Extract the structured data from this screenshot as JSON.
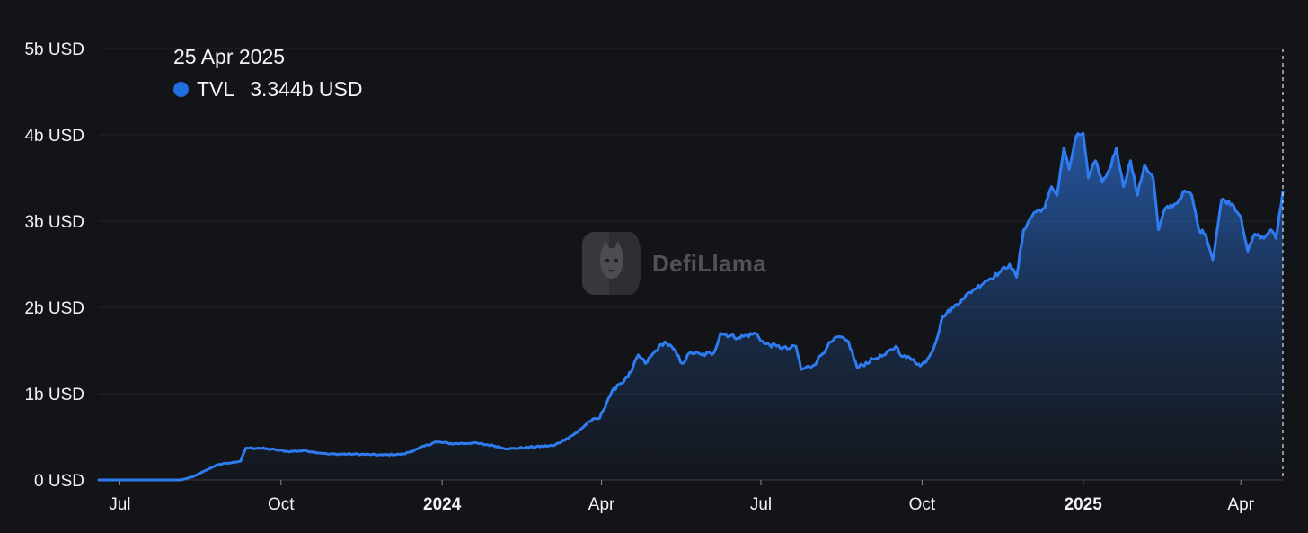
{
  "tooltip": {
    "date": "25 Apr 2025",
    "series_name": "TVL",
    "value_text": "3.344b USD"
  },
  "watermark": {
    "text": "DefiLlama"
  },
  "colors": {
    "background": "#131417",
    "line": "#2f7cf0",
    "legend_dot": "#1f6fe0",
    "grid": "#22252b",
    "tick_text": "#f2f3f5"
  },
  "chart_data": {
    "type": "area",
    "title": "",
    "xlabel": "",
    "ylabel": "",
    "ylim": [
      0,
      5
    ],
    "y_unit": "b USD",
    "y_ticks": [
      {
        "value": 0,
        "label": "0 USD"
      },
      {
        "value": 1,
        "label": "1b USD"
      },
      {
        "value": 2,
        "label": "2b USD"
      },
      {
        "value": 3,
        "label": "3b USD"
      },
      {
        "value": 4,
        "label": "4b USD"
      },
      {
        "value": 5,
        "label": "5b USD"
      }
    ],
    "x_range": [
      "2023-06-19",
      "2025-04-25"
    ],
    "x_ticks": [
      {
        "date": "2023-07-01",
        "label": "Jul",
        "bold": false
      },
      {
        "date": "2023-10-01",
        "label": "Oct",
        "bold": false
      },
      {
        "date": "2024-01-01",
        "label": "2024",
        "bold": true
      },
      {
        "date": "2024-04-01",
        "label": "Apr",
        "bold": false
      },
      {
        "date": "2024-07-01",
        "label": "Jul",
        "bold": false
      },
      {
        "date": "2024-10-01",
        "label": "Oct",
        "bold": false
      },
      {
        "date": "2025-01-01",
        "label": "2025",
        "bold": true
      },
      {
        "date": "2025-04-01",
        "label": "Apr",
        "bold": false
      }
    ],
    "grid": true,
    "legend": "top-left",
    "crosshair_date": "2025-04-25",
    "series": [
      {
        "name": "TVL",
        "color": "#2f7cf0",
        "points": [
          [
            "2023-06-19",
            0.0
          ],
          [
            "2023-08-05",
            0.0
          ],
          [
            "2023-08-12",
            0.04
          ],
          [
            "2023-08-20",
            0.12
          ],
          [
            "2023-08-26",
            0.18
          ],
          [
            "2023-09-03",
            0.2
          ],
          [
            "2023-09-08",
            0.22
          ],
          [
            "2023-09-11",
            0.37
          ],
          [
            "2023-09-18",
            0.37
          ],
          [
            "2023-09-28",
            0.35
          ],
          [
            "2023-10-05",
            0.33
          ],
          [
            "2023-10-15",
            0.34
          ],
          [
            "2023-10-28",
            0.3
          ],
          [
            "2023-11-12",
            0.3
          ],
          [
            "2023-11-28",
            0.29
          ],
          [
            "2023-12-10",
            0.3
          ],
          [
            "2023-12-18",
            0.36
          ],
          [
            "2023-12-28",
            0.44
          ],
          [
            "2024-01-08",
            0.42
          ],
          [
            "2024-01-18",
            0.43
          ],
          [
            "2024-01-30",
            0.4
          ],
          [
            "2024-02-08",
            0.36
          ],
          [
            "2024-02-20",
            0.38
          ],
          [
            "2024-03-05",
            0.4
          ],
          [
            "2024-03-12",
            0.48
          ],
          [
            "2024-03-18",
            0.55
          ],
          [
            "2024-03-25",
            0.68
          ],
          [
            "2024-03-31",
            0.72
          ],
          [
            "2024-04-05",
            0.95
          ],
          [
            "2024-04-10",
            1.1
          ],
          [
            "2024-04-14",
            1.15
          ],
          [
            "2024-04-18",
            1.25
          ],
          [
            "2024-04-22",
            1.45
          ],
          [
            "2024-04-26",
            1.35
          ],
          [
            "2024-05-02",
            1.5
          ],
          [
            "2024-05-07",
            1.6
          ],
          [
            "2024-05-12",
            1.52
          ],
          [
            "2024-05-17",
            1.35
          ],
          [
            "2024-05-22",
            1.48
          ],
          [
            "2024-05-28",
            1.45
          ],
          [
            "2024-06-04",
            1.47
          ],
          [
            "2024-06-08",
            1.7
          ],
          [
            "2024-06-18",
            1.65
          ],
          [
            "2024-06-28",
            1.7
          ],
          [
            "2024-07-03",
            1.58
          ],
          [
            "2024-07-10",
            1.55
          ],
          [
            "2024-07-16",
            1.52
          ],
          [
            "2024-07-21",
            1.55
          ],
          [
            "2024-07-24",
            1.28
          ],
          [
            "2024-07-31",
            1.33
          ],
          [
            "2024-08-08",
            1.55
          ],
          [
            "2024-08-14",
            1.66
          ],
          [
            "2024-08-20",
            1.6
          ],
          [
            "2024-08-25",
            1.3
          ],
          [
            "2024-09-03",
            1.4
          ],
          [
            "2024-09-10",
            1.45
          ],
          [
            "2024-09-16",
            1.55
          ],
          [
            "2024-09-20",
            1.43
          ],
          [
            "2024-09-26",
            1.4
          ],
          [
            "2024-09-30",
            1.32
          ],
          [
            "2024-10-04",
            1.4
          ],
          [
            "2024-10-08",
            1.55
          ],
          [
            "2024-10-13",
            1.9
          ],
          [
            "2024-10-19",
            2.0
          ],
          [
            "2024-10-24",
            2.1
          ],
          [
            "2024-10-30",
            2.2
          ],
          [
            "2024-11-06",
            2.3
          ],
          [
            "2024-11-14",
            2.4
          ],
          [
            "2024-11-20",
            2.5
          ],
          [
            "2024-11-24",
            2.35
          ],
          [
            "2024-11-28",
            2.9
          ],
          [
            "2024-12-04",
            3.1
          ],
          [
            "2024-12-10",
            3.15
          ],
          [
            "2024-12-14",
            3.4
          ],
          [
            "2024-12-17",
            3.3
          ],
          [
            "2024-12-21",
            3.85
          ],
          [
            "2024-12-24",
            3.6
          ],
          [
            "2024-12-28",
            3.98
          ],
          [
            "2025-01-01",
            4.02
          ],
          [
            "2025-01-04",
            3.5
          ],
          [
            "2025-01-08",
            3.7
          ],
          [
            "2025-01-12",
            3.45
          ],
          [
            "2025-01-16",
            3.6
          ],
          [
            "2025-01-20",
            3.85
          ],
          [
            "2025-01-24",
            3.4
          ],
          [
            "2025-01-28",
            3.7
          ],
          [
            "2025-02-01",
            3.3
          ],
          [
            "2025-02-05",
            3.65
          ],
          [
            "2025-02-10",
            3.5
          ],
          [
            "2025-02-13",
            2.9
          ],
          [
            "2025-02-17",
            3.15
          ],
          [
            "2025-02-23",
            3.2
          ],
          [
            "2025-02-28",
            3.35
          ],
          [
            "2025-03-04",
            3.3
          ],
          [
            "2025-03-08",
            2.9
          ],
          [
            "2025-03-12",
            2.85
          ],
          [
            "2025-03-16",
            2.55
          ],
          [
            "2025-03-21",
            3.25
          ],
          [
            "2025-03-27",
            3.2
          ],
          [
            "2025-04-01",
            3.05
          ],
          [
            "2025-04-05",
            2.65
          ],
          [
            "2025-04-09",
            2.85
          ],
          [
            "2025-04-14",
            2.8
          ],
          [
            "2025-04-18",
            2.9
          ],
          [
            "2025-04-21",
            2.8
          ],
          [
            "2025-04-25",
            3.344
          ]
        ]
      }
    ]
  }
}
